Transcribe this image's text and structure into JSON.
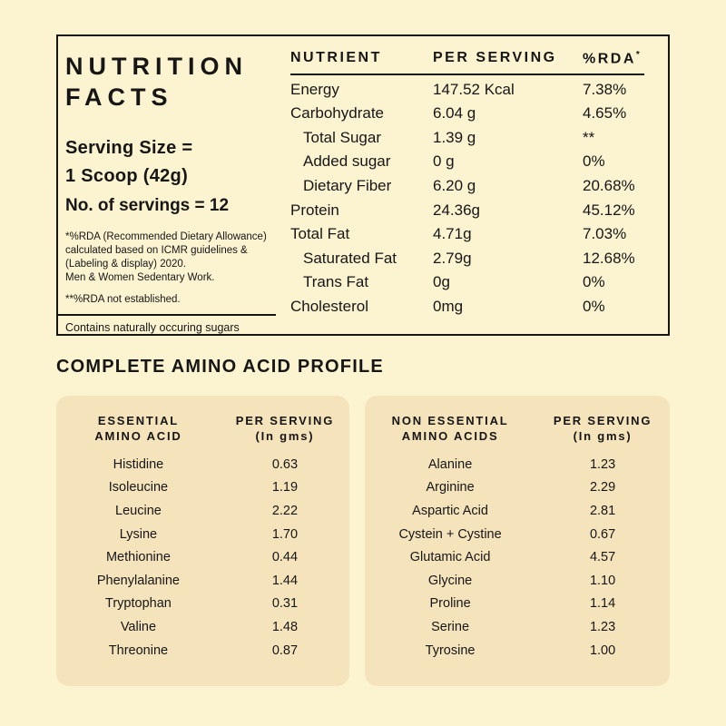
{
  "colors": {
    "background": "#FCF3D0",
    "card_background": "#F5E3BB",
    "text": "#161616"
  },
  "nutrition_facts": {
    "title_line1": "NUTRITION",
    "title_line2": "FACTS",
    "serving_size_label": "Serving Size =",
    "serving_size_value": "1 Scoop (42g)",
    "servings_count": "No. of servings = 12",
    "rda_footnote_lines": [
      "*%RDA (Recommended Dietary Allowance)",
      "calculated based on ICMR guidelines &",
      "(Labeling & display) 2020.",
      "Men & Women Sedentary Work."
    ],
    "rda_not_established": "**%RDA not established.",
    "contains_note": "Contains naturally occuring sugars",
    "table": {
      "header_nutrient": "NUTRIENT",
      "header_per_serving": "PER SERVING",
      "header_rda": "%RDA",
      "header_rda_superscript": "*",
      "rows": [
        {
          "nutrient": "Energy",
          "per_serving": "147.52 Kcal",
          "rda": "7.38%",
          "indent": false
        },
        {
          "nutrient": "Carbohydrate",
          "per_serving": "6.04 g",
          "rda": "4.65%",
          "indent": false
        },
        {
          "nutrient": "Total Sugar",
          "per_serving": "1.39 g",
          "rda": "**",
          "indent": true
        },
        {
          "nutrient": "Added sugar",
          "per_serving": "0 g",
          "rda": "0%",
          "indent": true
        },
        {
          "nutrient": "Dietary Fiber",
          "per_serving": "6.20 g",
          "rda": "20.68%",
          "indent": true
        },
        {
          "nutrient": "Protein",
          "per_serving": "24.36g",
          "rda": "45.12%",
          "indent": false
        },
        {
          "nutrient": "Total Fat",
          "per_serving": "4.71g",
          "rda": "7.03%",
          "indent": false
        },
        {
          "nutrient": "Saturated Fat",
          "per_serving": "2.79g",
          "rda": "12.68%",
          "indent": true
        },
        {
          "nutrient": "Trans Fat",
          "per_serving": "0g",
          "rda": "0%",
          "indent": true
        },
        {
          "nutrient": "Cholesterol",
          "per_serving": "0mg",
          "rda": "0%",
          "indent": false
        }
      ]
    }
  },
  "amino_profile": {
    "heading": "COMPLETE AMINO ACID PROFILE",
    "per_serving_header_line1": "PER SERVING",
    "per_serving_header_line2": "(In gms)",
    "essential": {
      "title_line1": "ESSENTIAL",
      "title_line2": "AMINO ACID",
      "rows": [
        {
          "name": "Histidine",
          "value": "0.63"
        },
        {
          "name": "Isoleucine",
          "value": "1.19"
        },
        {
          "name": "Leucine",
          "value": "2.22"
        },
        {
          "name": "Lysine",
          "value": "1.70"
        },
        {
          "name": "Methionine",
          "value": "0.44"
        },
        {
          "name": "Phenylalanine",
          "value": "1.44"
        },
        {
          "name": "Tryptophan",
          "value": "0.31"
        },
        {
          "name": "Valine",
          "value": "1.48"
        },
        {
          "name": "Threonine",
          "value": "0.87"
        }
      ]
    },
    "non_essential": {
      "title_line1": "NON ESSENTIAL",
      "title_line2": "AMINO ACIDS",
      "rows": [
        {
          "name": "Alanine",
          "value": "1.23"
        },
        {
          "name": "Arginine",
          "value": "2.29"
        },
        {
          "name": "Aspartic Acid",
          "value": "2.81"
        },
        {
          "name": "Cystein + Cystine",
          "value": "0.67"
        },
        {
          "name": "Glutamic Acid",
          "value": "4.57"
        },
        {
          "name": "Glycine",
          "value": "1.10"
        },
        {
          "name": "Proline",
          "value": "1.14"
        },
        {
          "name": "Serine",
          "value": "1.23"
        },
        {
          "name": "Tyrosine",
          "value": "1.00"
        }
      ]
    }
  }
}
